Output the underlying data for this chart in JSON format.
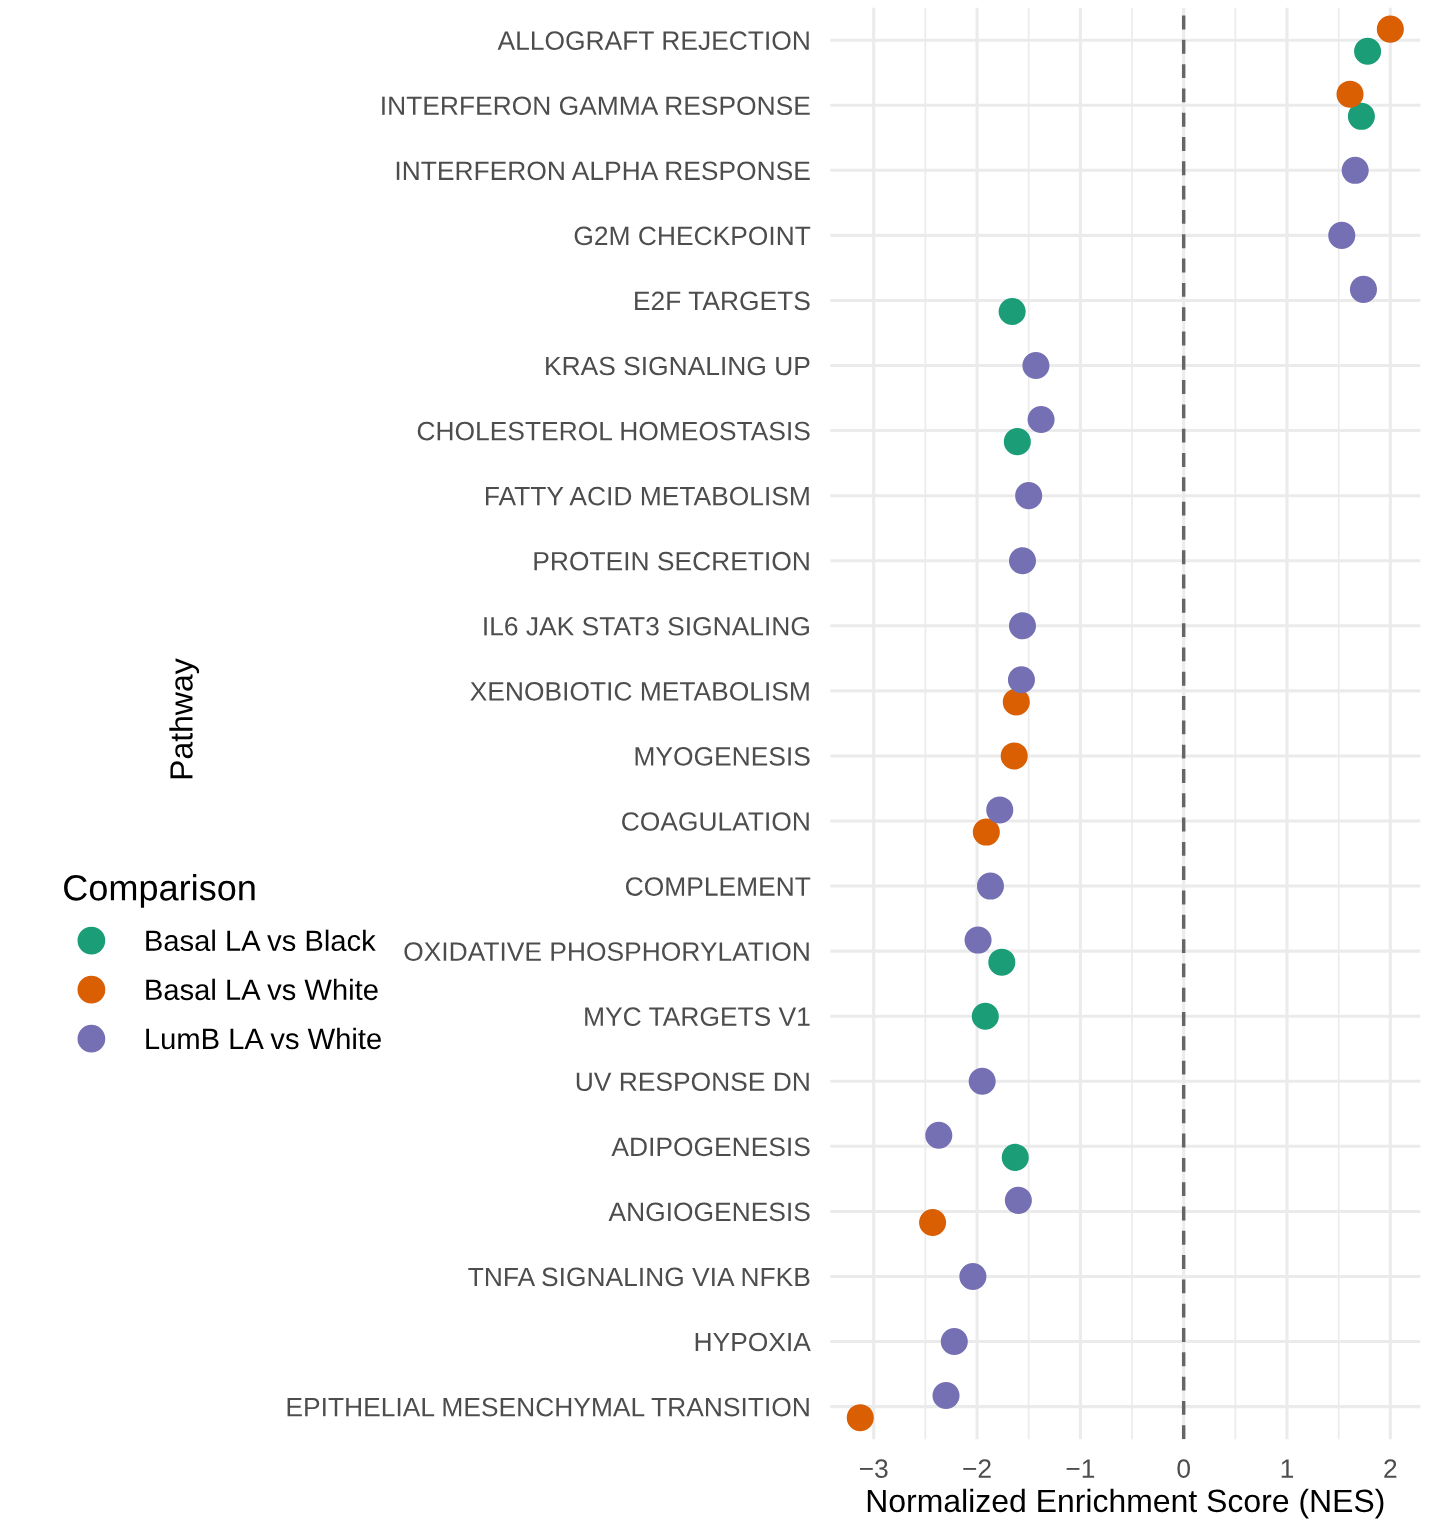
{
  "chart_data": {
    "type": "scatter",
    "xlabel": "Normalized Enrichment Score (NES)",
    "ylabel": "Pathway",
    "legend_title": "Comparison",
    "legend": "left",
    "grid": true,
    "marker": "circle",
    "categories": [
      "ALLOGRAFT REJECTION",
      "INTERFERON GAMMA RESPONSE",
      "INTERFERON ALPHA RESPONSE",
      "G2M CHECKPOINT",
      "E2F TARGETS",
      "KRAS SIGNALING UP",
      "CHOLESTEROL HOMEOSTASIS",
      "FATTY ACID METABOLISM",
      "PROTEIN SECRETION",
      "IL6 JAK STAT3 SIGNALING",
      "XENOBIOTIC METABOLISM",
      "MYOGENESIS",
      "COAGULATION",
      "COMPLEMENT",
      "OXIDATIVE PHOSPHORYLATION",
      "MYC TARGETS V1",
      "UV RESPONSE DN",
      "ADIPOGENESIS",
      "ANGIOGENESIS",
      "TNFA SIGNALING VIA NFKB",
      "HYPOXIA",
      "EPITHELIAL MESENCHYMAL TRANSITION"
    ],
    "orientation": "horizontal",
    "xlim": [
      -3.42,
      2.29
    ],
    "xticks": [
      {
        "value": -3,
        "label": "−3"
      },
      {
        "value": -2,
        "label": "−2"
      },
      {
        "value": -1,
        "label": "−1"
      },
      0,
      1,
      2
    ],
    "ref_lines": [
      {
        "axis": "x",
        "value": 0,
        "color": "#666666",
        "line_style": "dashed"
      }
    ],
    "series": [
      {
        "name": "Basal LA vs Black",
        "color": "#1b9e77",
        "values": [
          1.78,
          1.72,
          null,
          null,
          -1.66,
          null,
          -1.61,
          null,
          null,
          null,
          null,
          null,
          null,
          null,
          -1.76,
          -1.92,
          null,
          -1.63,
          null,
          null,
          null,
          null
        ]
      },
      {
        "name": "Basal LA vs White",
        "color": "#d95f02",
        "values": [
          2.0,
          1.61,
          null,
          null,
          null,
          null,
          null,
          null,
          null,
          null,
          -1.62,
          -1.64,
          -1.91,
          null,
          null,
          null,
          null,
          null,
          -2.43,
          null,
          null,
          -3.13
        ]
      },
      {
        "name": "LumB LA vs White",
        "color": "#7570b3",
        "values": [
          null,
          null,
          1.66,
          1.53,
          1.74,
          -1.43,
          -1.38,
          -1.5,
          -1.56,
          -1.56,
          -1.57,
          null,
          -1.78,
          -1.87,
          -1.99,
          null,
          -1.95,
          -2.37,
          -1.6,
          -2.04,
          -2.22,
          -2.3
        ]
      }
    ]
  }
}
